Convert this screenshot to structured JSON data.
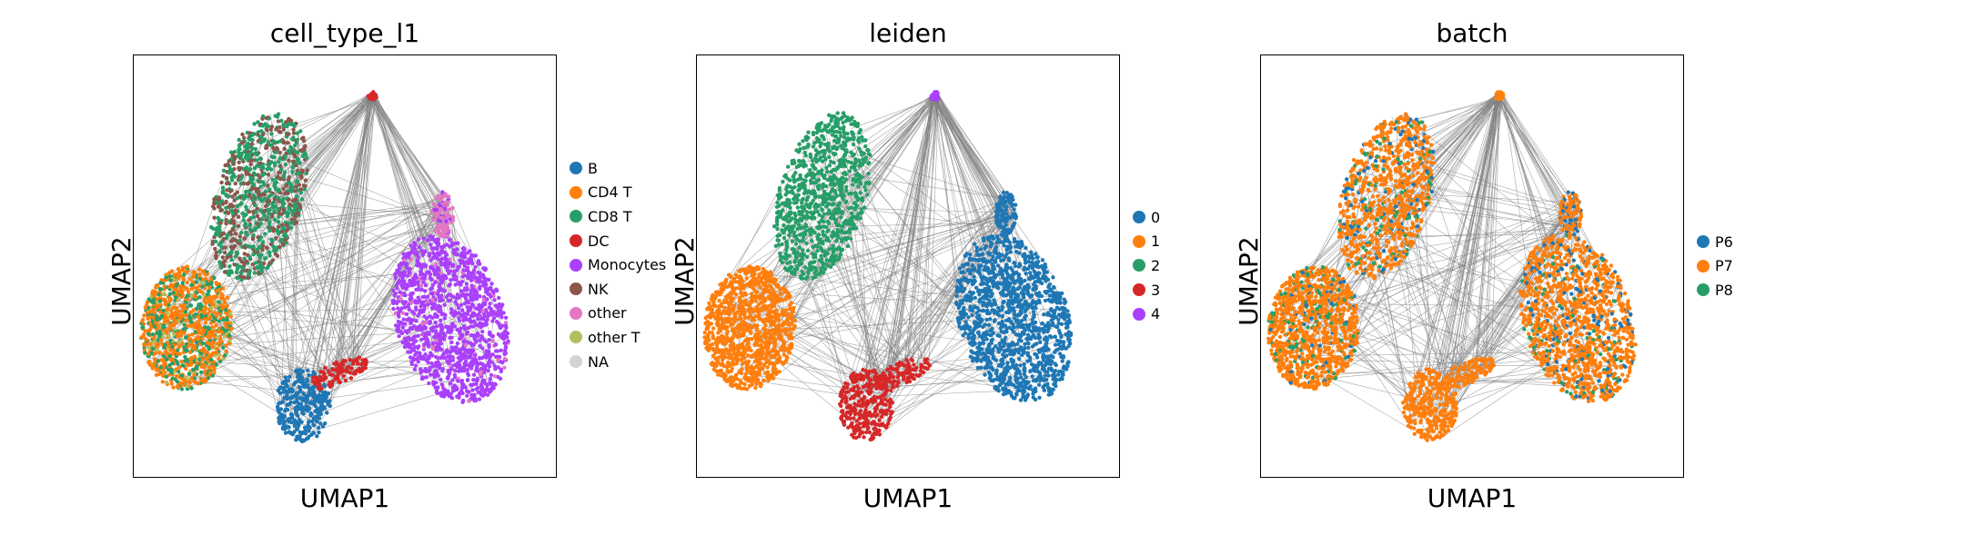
{
  "figure": {
    "panels": [
      {
        "title": "cell_type_l1",
        "xlabel": "UMAP1",
        "ylabel": "UMAP2",
        "legend": [
          {
            "label": "B",
            "color": "#1f77b4"
          },
          {
            "label": "CD4 T",
            "color": "#ff7f0e"
          },
          {
            "label": "CD8 T",
            "color": "#279e68"
          },
          {
            "label": "DC",
            "color": "#d62728"
          },
          {
            "label": "Monocytes",
            "color": "#aa40fc"
          },
          {
            "label": "NK",
            "color": "#8c564b"
          },
          {
            "label": "other",
            "color": "#e377c2"
          },
          {
            "label": "other T",
            "color": "#b5bd61"
          },
          {
            "label": "NA",
            "color": "#d3d3d3"
          }
        ]
      },
      {
        "title": "leiden",
        "xlabel": "UMAP1",
        "ylabel": "UMAP2",
        "legend": [
          {
            "label": "0",
            "color": "#1f77b4"
          },
          {
            "label": "1",
            "color": "#ff7f0e"
          },
          {
            "label": "2",
            "color": "#279e68"
          },
          {
            "label": "3",
            "color": "#d62728"
          },
          {
            "label": "4",
            "color": "#aa40fc"
          }
        ]
      },
      {
        "title": "batch",
        "xlabel": "UMAP1",
        "ylabel": "UMAP2",
        "legend": [
          {
            "label": "P6",
            "color": "#1f77b4"
          },
          {
            "label": "P7",
            "color": "#ff7f0e"
          },
          {
            "label": "P8",
            "color": "#279e68"
          }
        ]
      }
    ]
  },
  "chart_data": [
    {
      "type": "scatter",
      "title": "cell_type_l1",
      "xlabel": "UMAP1",
      "ylabel": "UMAP2",
      "grid": false,
      "ticks": false,
      "legend_position": "right",
      "edges": "gray graph connectivity lines",
      "series": [
        {
          "name": "B",
          "color": "#1f77b4"
        },
        {
          "name": "CD4 T",
          "color": "#ff7f0e"
        },
        {
          "name": "CD8 T",
          "color": "#279e68"
        },
        {
          "name": "DC",
          "color": "#d62728"
        },
        {
          "name": "Monocytes",
          "color": "#aa40fc"
        },
        {
          "name": "NK",
          "color": "#8c564b"
        },
        {
          "name": "other",
          "color": "#e377c2"
        },
        {
          "name": "other T",
          "color": "#b5bd61"
        },
        {
          "name": "NA",
          "color": "#d3d3d3"
        }
      ]
    },
    {
      "type": "scatter",
      "title": "leiden",
      "xlabel": "UMAP1",
      "ylabel": "UMAP2",
      "grid": false,
      "ticks": false,
      "legend_position": "right",
      "edges": "gray graph connectivity lines",
      "series": [
        {
          "name": "0",
          "color": "#1f77b4"
        },
        {
          "name": "1",
          "color": "#ff7f0e"
        },
        {
          "name": "2",
          "color": "#279e68"
        },
        {
          "name": "3",
          "color": "#d62728"
        },
        {
          "name": "4",
          "color": "#aa40fc"
        }
      ]
    },
    {
      "type": "scatter",
      "title": "batch",
      "xlabel": "UMAP1",
      "ylabel": "UMAP2",
      "grid": false,
      "ticks": false,
      "legend_position": "right",
      "edges": "gray graph connectivity lines",
      "series": [
        {
          "name": "P6",
          "color": "#1f77b4"
        },
        {
          "name": "P7",
          "color": "#ff7f0e"
        },
        {
          "name": "P8",
          "color": "#279e68"
        }
      ]
    }
  ]
}
